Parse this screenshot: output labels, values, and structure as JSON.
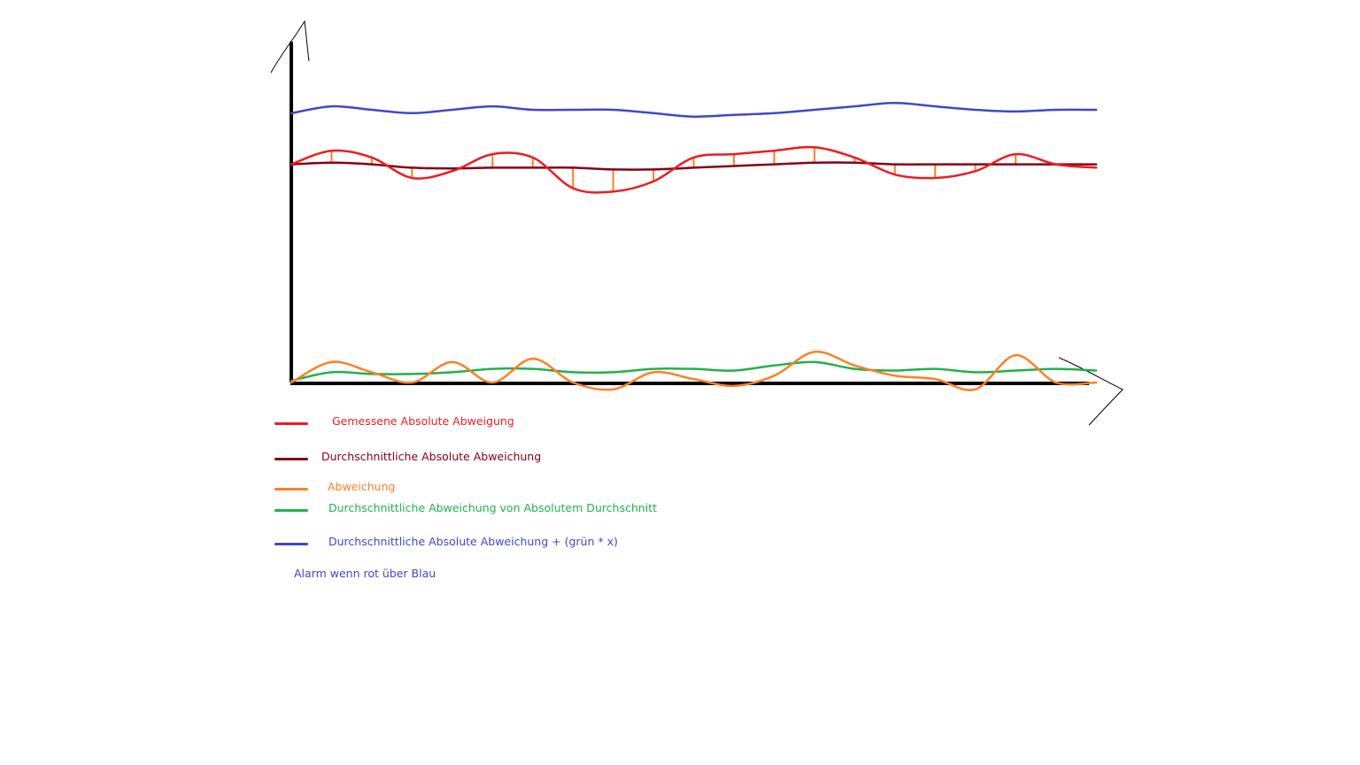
{
  "chart_data": {
    "type": "line",
    "title": "",
    "xlabel": "",
    "ylabel": "",
    "grid": false,
    "legend_position": "bottom-left",
    "ylim": [
      0,
      100
    ],
    "x": [
      0,
      5,
      10,
      15,
      20,
      25,
      30,
      35,
      40,
      45,
      50,
      55,
      60,
      65,
      70,
      75,
      80,
      85,
      90,
      95,
      100
    ],
    "series": [
      {
        "name": "Gemessene Absolute Abweigung",
        "color": "#ed1c24",
        "values": [
          64,
          68,
          66,
          60,
          62,
          67,
          66,
          57,
          56,
          59,
          66,
          67,
          68,
          69,
          66,
          61,
          60,
          62,
          67,
          64,
          63
        ]
      },
      {
        "name": "Durchschnittliche Absolute Abweichung",
        "color": "#880015",
        "values": [
          64,
          64.5,
          64,
          63,
          62.8,
          63,
          63,
          63,
          62.5,
          62.5,
          63,
          63.5,
          64,
          64.5,
          64.5,
          64,
          64,
          64,
          64,
          64,
          64
        ]
      },
      {
        "name": "Abweichung",
        "color": "#ff7f27",
        "values": [
          0,
          6,
          3,
          0,
          6,
          0,
          7,
          0,
          -2,
          3,
          1,
          -1,
          2,
          9,
          5,
          2,
          1,
          -2,
          8,
          0,
          0
        ]
      },
      {
        "name": "Durchschnittliche Abweichung von Absolutem Durchschnitt",
        "color": "#22b14c",
        "values": [
          0.5,
          3,
          2.5,
          2.5,
          3,
          4,
          4,
          3,
          3,
          4,
          4,
          3.5,
          5,
          6,
          4,
          3.5,
          4,
          3,
          3.5,
          4,
          3.5
        ]
      },
      {
        "name": "Durchschnittliche Absolute Abweichung + (grün * x)",
        "color": "#3f48cc",
        "values": [
          79,
          81,
          80,
          79,
          80,
          81,
          80,
          80,
          80,
          79,
          78,
          78.5,
          79,
          80,
          81,
          82,
          81,
          80,
          79.5,
          80,
          80
        ]
      }
    ],
    "annotations": [
      "Alarm wenn rot über Blau"
    ]
  },
  "legend": {
    "items": [
      {
        "label": "Gemessene Absolute Abweigung",
        "color": "#ed1c24"
      },
      {
        "label": "Durchschnittliche Absolute Abweichung",
        "color": "#880015"
      },
      {
        "label": "Abweichung",
        "color": "#ff7f27"
      },
      {
        "label": "Durchschnittliche Abweichung von Absolutem Durchschnitt",
        "color": "#22b14c"
      },
      {
        "label": "Durchschnittliche Absolute Abweichung + (grün * x)",
        "color": "#3f48cc"
      }
    ]
  },
  "note": {
    "text": "Alarm wenn rot über Blau",
    "color": "#3f48cc"
  }
}
